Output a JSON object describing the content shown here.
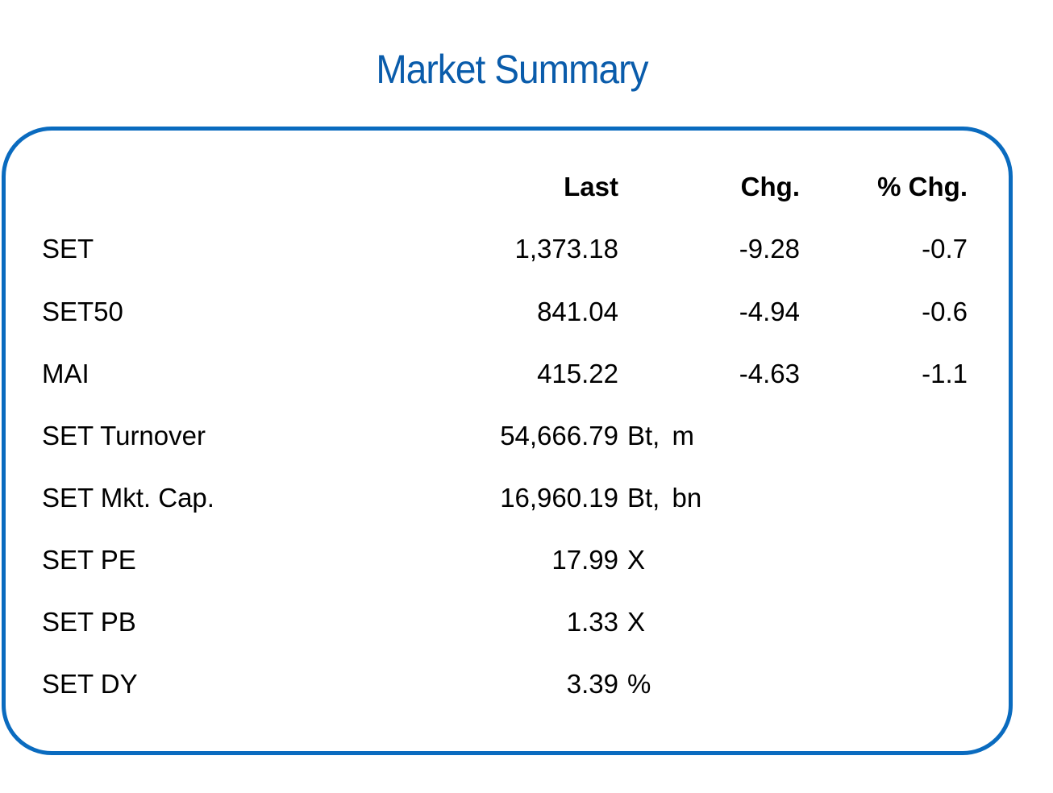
{
  "title": "Market Summary",
  "colors": {
    "accent": "#0a6bbf",
    "title": "#0a5cab",
    "text": "#000000"
  },
  "headers": {
    "last": "Last",
    "chg": "Chg.",
    "pct_chg": "% Chg."
  },
  "rows": [
    {
      "name": "SET",
      "last": "1,373.18",
      "unit": "",
      "chg": "-9.28",
      "pct_chg": "-0.7"
    },
    {
      "name": "SET50",
      "last": "841.04",
      "unit": "",
      "chg": "-4.94",
      "pct_chg": "-0.6"
    },
    {
      "name": "MAI",
      "last": "415.22",
      "unit": "",
      "chg": "-4.63",
      "pct_chg": "-1.1"
    },
    {
      "name": "SET Turnover",
      "last": "54,666.79",
      "unit": "Bt, m",
      "chg": "",
      "pct_chg": ""
    },
    {
      "name": "SET Mkt. Cap.",
      "last": "16,960.19",
      "unit": "Bt, bn",
      "chg": "",
      "pct_chg": ""
    },
    {
      "name": "SET PE",
      "last": "17.99",
      "unit": "X",
      "chg": "",
      "pct_chg": ""
    },
    {
      "name": "SET PB",
      "last": "1.33",
      "unit": "X",
      "chg": "",
      "pct_chg": ""
    },
    {
      "name": "SET DY",
      "last": "3.39",
      "unit": "%",
      "chg": "",
      "pct_chg": ""
    }
  ]
}
